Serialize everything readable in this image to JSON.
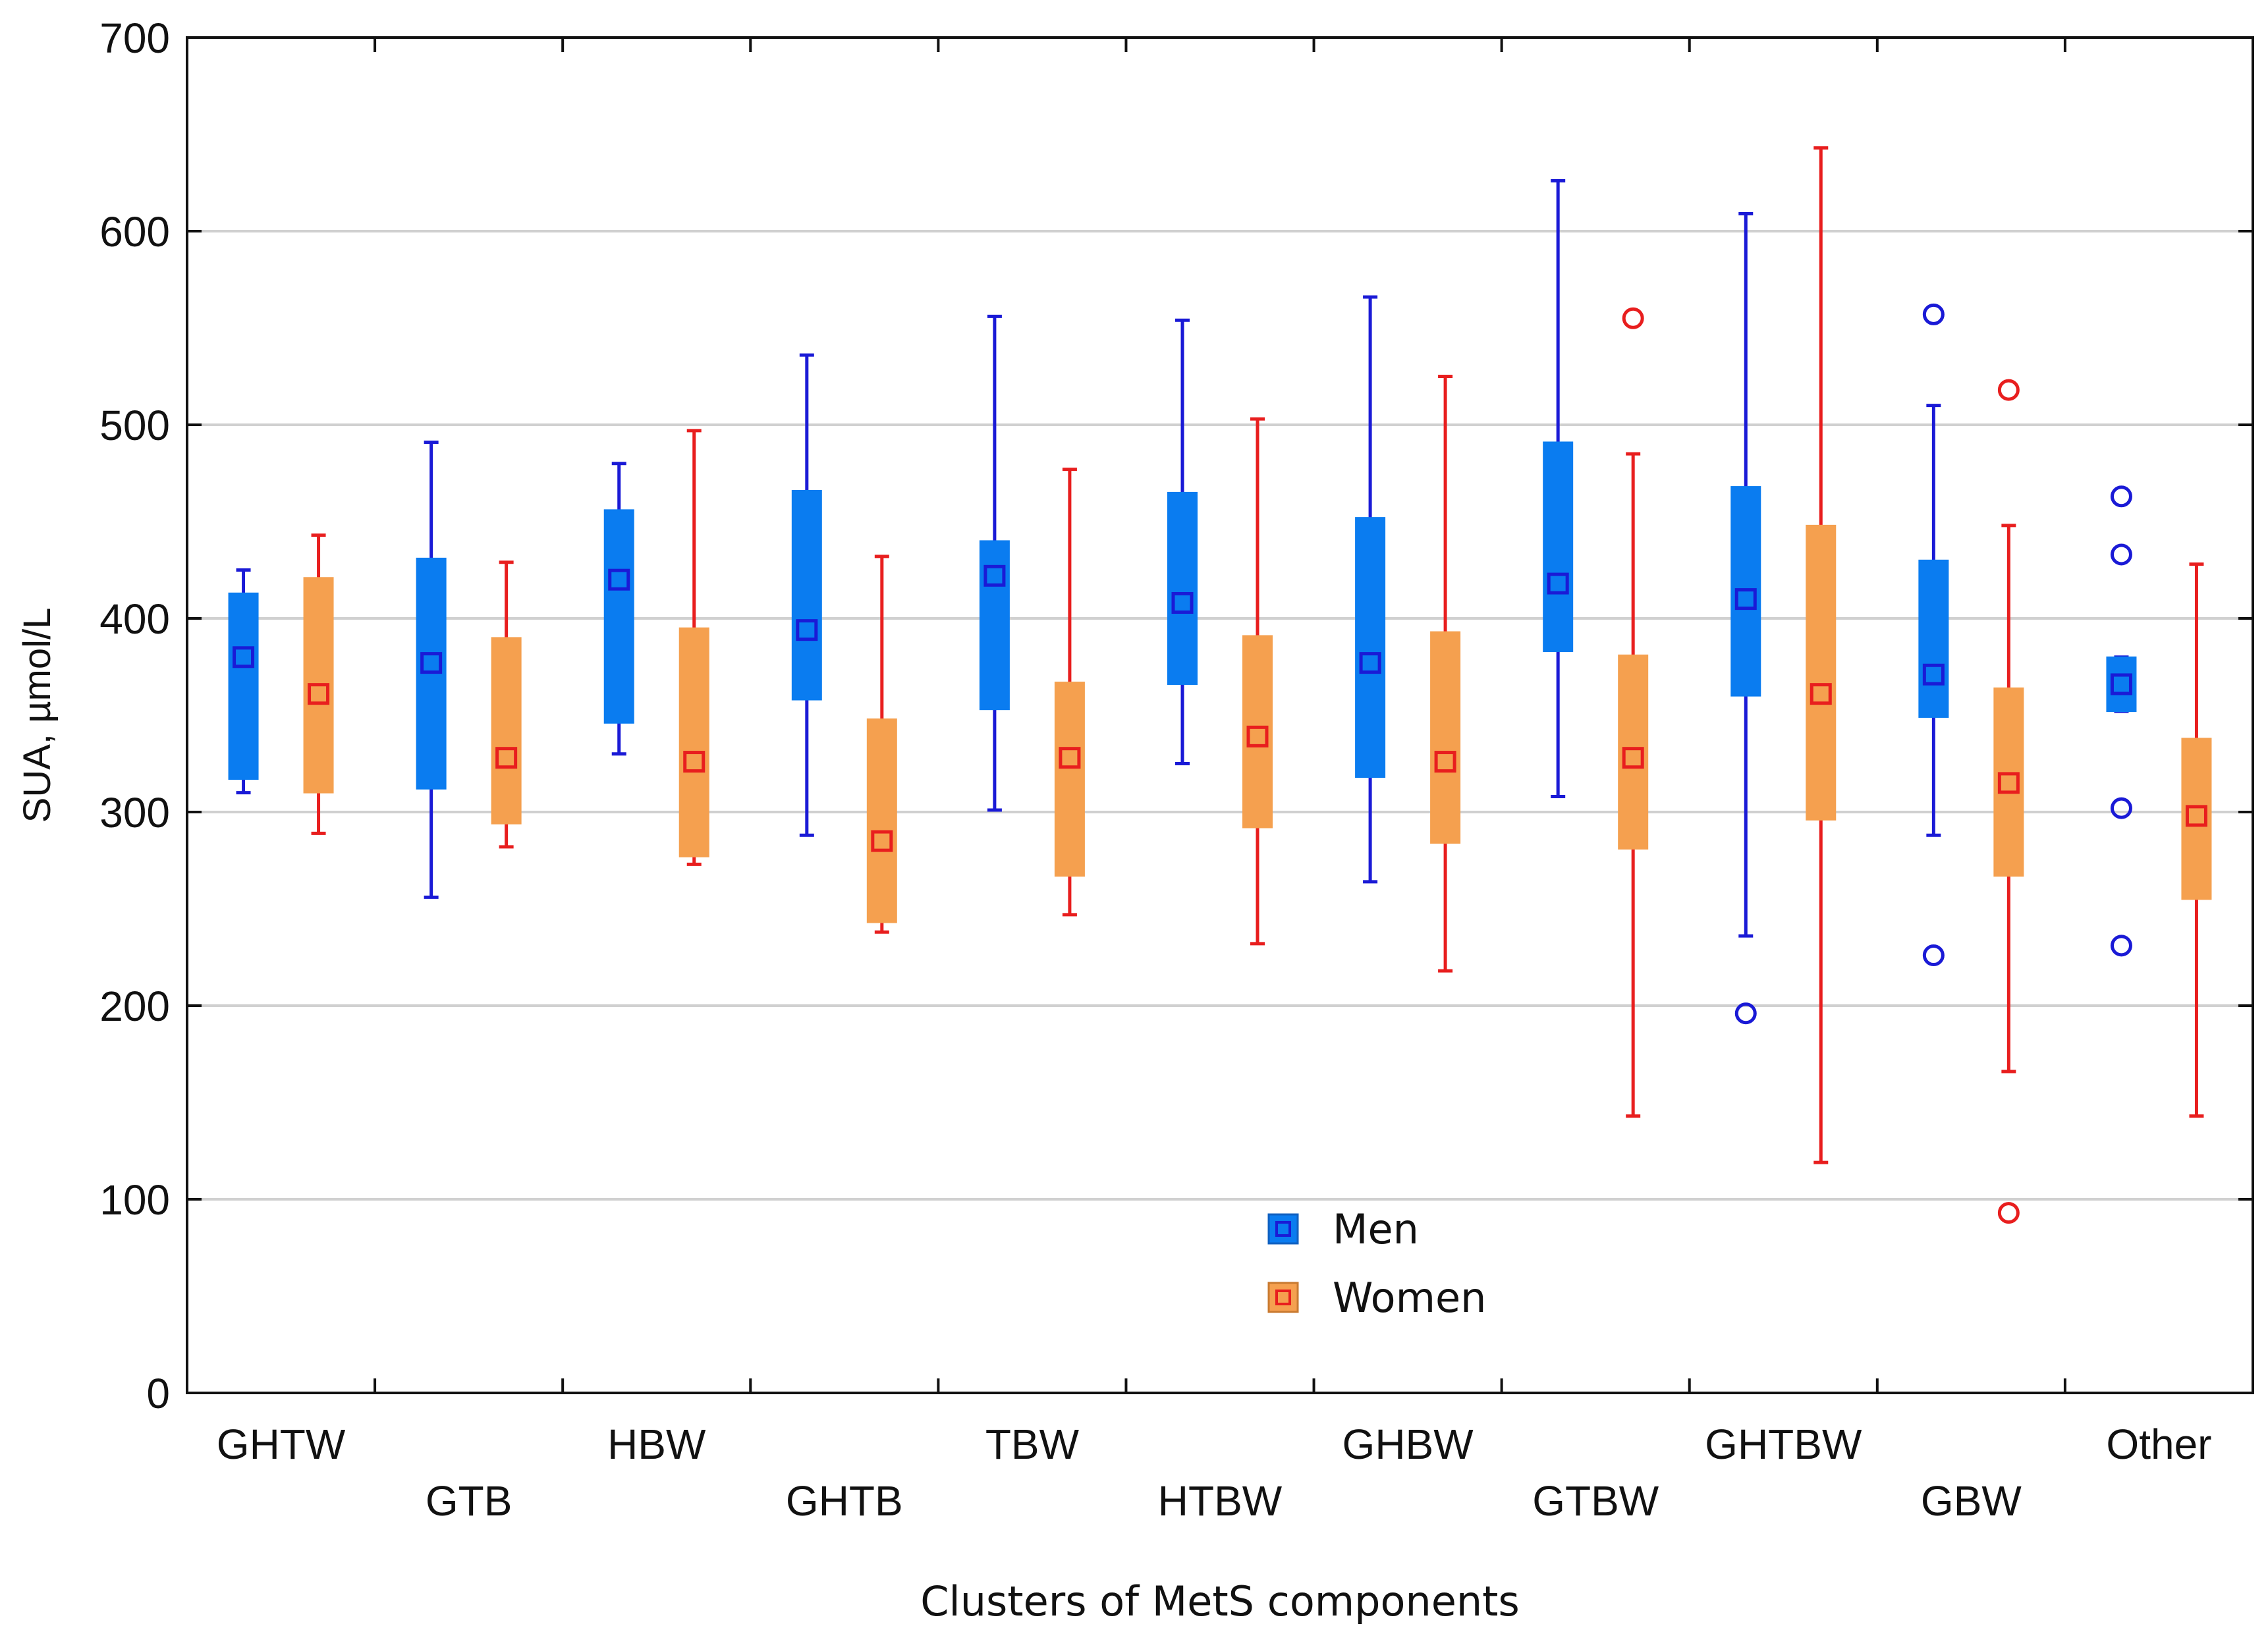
{
  "chart_data": {
    "type": "box",
    "title": "",
    "xlabel": "Clusters of MetS components",
    "ylabel": "SUA, µmol/L",
    "ylim": [
      0,
      700
    ],
    "yticks": [
      0,
      100,
      200,
      300,
      400,
      500,
      600,
      700
    ],
    "grid": true,
    "legend_position": "bottom-center",
    "categories": [
      "GHTW",
      "GTB",
      "HBW",
      "GHTB",
      "TBW",
      "HTBW",
      "GHBW",
      "GTBW",
      "GHTBW",
      "GBW",
      "Other"
    ],
    "colors": {
      "Men": {
        "fill": "#0a7cf0",
        "stroke": "#1a1ad6"
      },
      "Women": {
        "fill": "#f5a04f",
        "stroke": "#e81e1e"
      }
    },
    "series": [
      {
        "name": "Men",
        "boxes": [
          {
            "median": 380,
            "q1": 317,
            "q3": 413,
            "whisker_low": 310,
            "whisker_high": 425,
            "outliers": []
          },
          {
            "median": 377,
            "q1": 312,
            "q3": 431,
            "whisker_low": 256,
            "whisker_high": 491,
            "outliers": []
          },
          {
            "median": 420,
            "q1": 346,
            "q3": 456,
            "whisker_low": 330,
            "whisker_high": 480,
            "outliers": []
          },
          {
            "median": 394,
            "q1": 358,
            "q3": 466,
            "whisker_low": 288,
            "whisker_high": 536,
            "outliers": []
          },
          {
            "median": 422,
            "q1": 353,
            "q3": 440,
            "whisker_low": 301,
            "whisker_high": 556,
            "outliers": []
          },
          {
            "median": 408,
            "q1": 366,
            "q3": 465,
            "whisker_low": 325,
            "whisker_high": 554,
            "outliers": []
          },
          {
            "median": 377,
            "q1": 318,
            "q3": 452,
            "whisker_low": 264,
            "whisker_high": 566,
            "outliers": []
          },
          {
            "median": 418,
            "q1": 383,
            "q3": 491,
            "whisker_low": 308,
            "whisker_high": 626,
            "outliers": []
          },
          {
            "median": 410,
            "q1": 360,
            "q3": 468,
            "whisker_low": 236,
            "whisker_high": 609,
            "outliers": [
              196
            ]
          },
          {
            "median": 371,
            "q1": 349,
            "q3": 430,
            "whisker_low": 288,
            "whisker_high": 510,
            "outliers": [
              557,
              226
            ]
          },
          {
            "median": 366,
            "q1": 352,
            "q3": 380,
            "whisker_low": 352,
            "whisker_high": 380,
            "outliers": [
              463,
              433,
              302,
              231
            ]
          }
        ]
      },
      {
        "name": "Women",
        "boxes": [
          {
            "median": 361,
            "q1": 310,
            "q3": 421,
            "whisker_low": 289,
            "whisker_high": 443,
            "outliers": []
          },
          {
            "median": 328,
            "q1": 294,
            "q3": 390,
            "whisker_low": 282,
            "whisker_high": 429,
            "outliers": []
          },
          {
            "median": 326,
            "q1": 277,
            "q3": 395,
            "whisker_low": 273,
            "whisker_high": 497,
            "outliers": []
          },
          {
            "median": 285,
            "q1": 243,
            "q3": 348,
            "whisker_low": 238,
            "whisker_high": 432,
            "outliers": []
          },
          {
            "median": 328,
            "q1": 267,
            "q3": 367,
            "whisker_low": 247,
            "whisker_high": 477,
            "outliers": []
          },
          {
            "median": 339,
            "q1": 292,
            "q3": 391,
            "whisker_low": 232,
            "whisker_high": 503,
            "outliers": []
          },
          {
            "median": 326,
            "q1": 284,
            "q3": 393,
            "whisker_low": 218,
            "whisker_high": 525,
            "outliers": []
          },
          {
            "median": 328,
            "q1": 281,
            "q3": 381,
            "whisker_low": 143,
            "whisker_high": 485,
            "outliers": [
              555
            ]
          },
          {
            "median": 361,
            "q1": 296,
            "q3": 448,
            "whisker_low": 119,
            "whisker_high": 643,
            "outliers": []
          },
          {
            "median": 315,
            "q1": 267,
            "q3": 364,
            "whisker_low": 166,
            "whisker_high": 448,
            "outliers": [
              518,
              93
            ]
          },
          {
            "median": 298,
            "q1": 255,
            "q3": 338,
            "whisker_low": 143,
            "whisker_high": 428,
            "outliers": []
          }
        ]
      }
    ]
  }
}
